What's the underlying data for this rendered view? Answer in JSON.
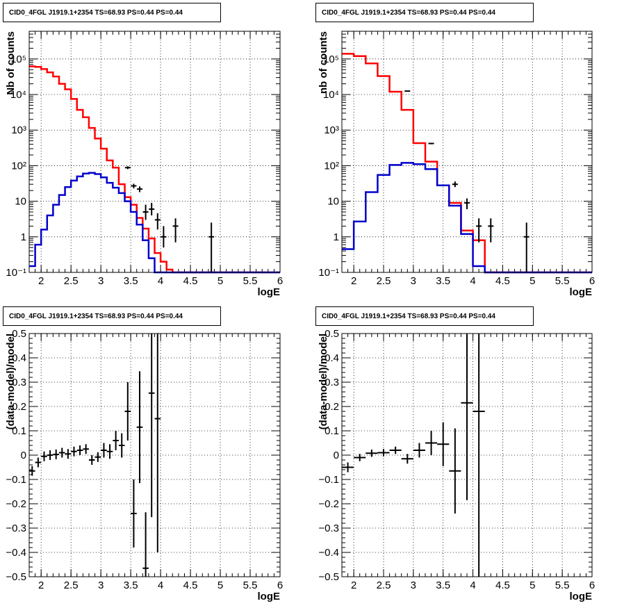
{
  "pads": [
    {
      "title": "CID0_4FGL J1919.1+2354 TS=68.93 PS=0.44 PS=0.44"
    },
    {
      "title": "CID0_4FGL J1919.1+2354 TS=68.93 PS=0.44 PS=0.44"
    },
    {
      "title": "CID0_4FGL J1919.1+2354 TS=68.93 PS=0.44 PS=0.44"
    },
    {
      "title": "CID0_4FGL J1919.1+2354 TS=68.93 PS=0.44 PS=0.44"
    }
  ],
  "colors": {
    "total_model": "#ff0000",
    "source_model": "#0000cc",
    "data": "#000000",
    "grid": "#000000"
  },
  "chart_data": [
    {
      "type": "line",
      "title": "CID0_4FGL J1919.1+2354 TS=68.93 PS=0.44 PS=0.44",
      "xlabel": "logE",
      "ylabel": "Nb of counts",
      "xlim": [
        1.8,
        6.0
      ],
      "ylim": [
        0.1,
        600000
      ],
      "ylog": true,
      "grid": true,
      "xticks": [
        {
          "v": 2,
          "label": "2"
        },
        {
          "v": 2.5,
          "label": "2.5"
        },
        {
          "v": 3,
          "label": "3"
        },
        {
          "v": 3.5,
          "label": "3.5"
        },
        {
          "v": 4,
          "label": "4"
        },
        {
          "v": 4.5,
          "label": "4.5"
        },
        {
          "v": 5,
          "label": "5"
        },
        {
          "v": 5.5,
          "label": "5.5"
        },
        {
          "v": 6,
          "label": "6"
        }
      ],
      "yticks": [
        {
          "v": 0.1,
          "label": "10⁻¹"
        },
        {
          "v": 1,
          "label": "1"
        },
        {
          "v": 10,
          "label": "10"
        },
        {
          "v": 100,
          "label": "10²"
        },
        {
          "v": 1000,
          "label": "10³"
        },
        {
          "v": 10000,
          "label": "10⁴"
        },
        {
          "v": 100000,
          "label": "10⁵"
        }
      ],
      "bin_edges_start": 1.8,
      "bin_width": 0.1,
      "series": [
        {
          "kind": "hist",
          "color": "#ff0000",
          "values": [
            62000,
            60000,
            52000,
            42000,
            32000,
            20000,
            14000,
            7500,
            3700,
            2300,
            1150,
            580,
            300,
            140,
            88,
            30,
            13,
            8,
            3.4,
            1.7,
            0.9,
            0.35,
            0.2,
            0.12,
            0.1,
            0.1,
            0.1,
            0.1,
            0.1,
            0.1,
            0.1,
            0.1,
            0.1,
            0.1,
            0.1,
            0.1,
            0.1,
            0.1,
            0.1,
            0.1,
            0.1,
            0.1
          ]
        },
        {
          "kind": "hist",
          "color": "#0000cc",
          "values": [
            0.15,
            0.6,
            1.6,
            4,
            8,
            15,
            25,
            38,
            50,
            60,
            63,
            58,
            47,
            33,
            24,
            17,
            10,
            5,
            2.2,
            0.8,
            0.25,
            0.1,
            0.1,
            0.1,
            0.1,
            0.1,
            0.1,
            0.1,
            0.1,
            0.1,
            0.1,
            0.1,
            0.1,
            0.1,
            0.1,
            0.1,
            0.1,
            0.1,
            0.1,
            0.1,
            0.1,
            0.1
          ]
        },
        {
          "kind": "points",
          "color": "#000000",
          "points": [
            {
              "x": 3.45,
              "y": 88,
              "lo": 80,
              "hi": 96
            },
            {
              "x": 3.55,
              "y": 27,
              "lo": 23,
              "hi": 31
            },
            {
              "x": 3.65,
              "y": 22,
              "lo": 18,
              "hi": 26
            },
            {
              "x": 3.75,
              "y": 5,
              "lo": 3,
              "hi": 8
            },
            {
              "x": 3.85,
              "y": 6,
              "lo": 4,
              "hi": 9
            },
            {
              "x": 3.95,
              "y": 3,
              "lo": 1.6,
              "hi": 4.6
            },
            {
              "x": 4.05,
              "y": 1,
              "lo": 0.5,
              "hi": 2
            },
            {
              "x": 4.25,
              "y": 2,
              "lo": 0.7,
              "hi": 3.3
            },
            {
              "x": 4.85,
              "y": 1,
              "lo": 0.1,
              "hi": 2.5
            }
          ]
        }
      ]
    },
    {
      "type": "line",
      "title": "CID0_4FGL J1919.1+2354 TS=68.93 PS=0.44 PS=0.44",
      "xlabel": "logE",
      "ylabel": "nb of counts",
      "xlim": [
        1.8,
        6.0
      ],
      "ylim": [
        0.1,
        600000
      ],
      "ylog": true,
      "grid": true,
      "xticks": [
        {
          "v": 2,
          "label": "2"
        },
        {
          "v": 2.5,
          "label": "2.5"
        },
        {
          "v": 3,
          "label": "3"
        },
        {
          "v": 3.5,
          "label": "3.5"
        },
        {
          "v": 4,
          "label": "4"
        },
        {
          "v": 4.5,
          "label": "4.5"
        },
        {
          "v": 5,
          "label": "5"
        },
        {
          "v": 5.5,
          "label": "5.5"
        },
        {
          "v": 6,
          "label": "6"
        }
      ],
      "yticks": [
        {
          "v": 0.1,
          "label": "10⁻¹"
        },
        {
          "v": 1,
          "label": "1"
        },
        {
          "v": 10,
          "label": "10"
        },
        {
          "v": 100,
          "label": "10²"
        },
        {
          "v": 1000,
          "label": "10³"
        },
        {
          "v": 10000,
          "label": "10⁴"
        },
        {
          "v": 100000,
          "label": "10⁵"
        }
      ],
      "bin_edges_start": 1.8,
      "bin_width": 0.2,
      "series": [
        {
          "kind": "hist",
          "color": "#ff0000",
          "values": [
            140000,
            120000,
            75000,
            33000,
            12000,
            3700,
            430,
            130,
            28,
            9,
            1.5,
            0.8,
            0.1,
            0.1,
            0.1,
            0.1,
            0.1,
            0.1,
            0.1,
            0.1,
            0.1
          ]
        },
        {
          "kind": "hist",
          "color": "#0000cc",
          "values": [
            0.45,
            2.7,
            18,
            55,
            105,
            120,
            110,
            80,
            28,
            7.5,
            1.2,
            0.15,
            0.1,
            0.1,
            0.1,
            0.1,
            0.1,
            0.1,
            0.1,
            0.1,
            0.1
          ]
        },
        {
          "kind": "points",
          "color": "#000000",
          "points": [
            {
              "x": 2.9,
              "y": 12500,
              "lo": 12300,
              "hi": 12700
            },
            {
              "x": 3.3,
              "y": 420,
              "lo": 400,
              "hi": 440
            },
            {
              "x": 3.7,
              "y": 30,
              "lo": 25,
              "hi": 36
            },
            {
              "x": 3.9,
              "y": 9,
              "lo": 6,
              "hi": 12
            },
            {
              "x": 4.1,
              "y": 2,
              "lo": 0.7,
              "hi": 3.3
            },
            {
              "x": 4.3,
              "y": 2,
              "lo": 0.7,
              "hi": 3.3
            },
            {
              "x": 4.9,
              "y": 1,
              "lo": 0.1,
              "hi": 2.5
            }
          ]
        }
      ]
    },
    {
      "type": "scatter",
      "title": "CID0_4FGL J1919.1+2354 TS=68.93 PS=0.44 PS=0.44",
      "xlabel": "logE",
      "ylabel": "(data-model)/model",
      "xlim": [
        1.8,
        6.0
      ],
      "ylim": [
        -0.5,
        0.5
      ],
      "grid": true,
      "xticks": [
        {
          "v": 2,
          "label": "2"
        },
        {
          "v": 2.5,
          "label": "2.5"
        },
        {
          "v": 3,
          "label": "3"
        },
        {
          "v": 3.5,
          "label": "3.5"
        },
        {
          "v": 4,
          "label": "4"
        },
        {
          "v": 4.5,
          "label": "4.5"
        },
        {
          "v": 5,
          "label": "5"
        },
        {
          "v": 5.5,
          "label": "5.5"
        },
        {
          "v": 6,
          "label": "6"
        }
      ],
      "yticks": [
        {
          "v": -0.5,
          "label": "−0.5"
        },
        {
          "v": -0.4,
          "label": "−0.4"
        },
        {
          "v": -0.3,
          "label": "−0.3"
        },
        {
          "v": -0.2,
          "label": "−0.2"
        },
        {
          "v": -0.1,
          "label": "−0.1"
        },
        {
          "v": 0,
          "label": "0"
        },
        {
          "v": 0.1,
          "label": "0.1"
        },
        {
          "v": 0.2,
          "label": "0.2"
        },
        {
          "v": 0.3,
          "label": "0.3"
        },
        {
          "v": 0.4,
          "label": "0.4"
        },
        {
          "v": 0.5,
          "label": "0.5"
        }
      ],
      "half_width": 0.05,
      "points": [
        {
          "x": 1.85,
          "y": -0.065,
          "err": 0.02
        },
        {
          "x": 1.95,
          "y": -0.03,
          "err": 0.02
        },
        {
          "x": 2.05,
          "y": -0.005,
          "err": 0.02
        },
        {
          "x": 2.15,
          "y": 0.0,
          "err": 0.02
        },
        {
          "x": 2.25,
          "y": 0.003,
          "err": 0.02
        },
        {
          "x": 2.35,
          "y": 0.01,
          "err": 0.02
        },
        {
          "x": 2.45,
          "y": 0.005,
          "err": 0.02
        },
        {
          "x": 2.55,
          "y": 0.015,
          "err": 0.02
        },
        {
          "x": 2.65,
          "y": 0.02,
          "err": 0.02
        },
        {
          "x": 2.75,
          "y": 0.025,
          "err": 0.02
        },
        {
          "x": 2.85,
          "y": -0.02,
          "err": 0.02
        },
        {
          "x": 2.95,
          "y": -0.008,
          "err": 0.02
        },
        {
          "x": 3.05,
          "y": 0.02,
          "err": 0.03
        },
        {
          "x": 3.15,
          "y": 0.015,
          "err": 0.03
        },
        {
          "x": 3.25,
          "y": 0.06,
          "err": 0.04
        },
        {
          "x": 3.35,
          "y": 0.04,
          "err": 0.05
        },
        {
          "x": 3.45,
          "y": 0.18,
          "err": 0.12
        },
        {
          "x": 3.55,
          "y": -0.24,
          "err": 0.14
        },
        {
          "x": 3.65,
          "y": 0.115,
          "err": 0.23
        },
        {
          "x": 3.75,
          "y": -0.465,
          "err": 0.23
        },
        {
          "x": 3.85,
          "y": 0.255,
          "err": 0.51
        },
        {
          "x": 3.95,
          "y": 0.15,
          "err": 0.55
        }
      ]
    },
    {
      "type": "scatter",
      "title": "CID0_4FGL J1919.1+2354 TS=68.93 PS=0.44 PS=0.44",
      "xlabel": "logE",
      "ylabel": "(data-model)/model",
      "xlim": [
        1.8,
        6.0
      ],
      "ylim": [
        -0.5,
        0.5
      ],
      "grid": true,
      "xticks": [
        {
          "v": 2,
          "label": "2"
        },
        {
          "v": 2.5,
          "label": "2.5"
        },
        {
          "v": 3,
          "label": "3"
        },
        {
          "v": 3.5,
          "label": "3.5"
        },
        {
          "v": 4,
          "label": "4"
        },
        {
          "v": 4.5,
          "label": "4.5"
        },
        {
          "v": 5,
          "label": "5"
        },
        {
          "v": 5.5,
          "label": "5.5"
        },
        {
          "v": 6,
          "label": "6"
        }
      ],
      "yticks": [
        {
          "v": -0.5,
          "label": "−0.5"
        },
        {
          "v": -0.4,
          "label": "−0.4"
        },
        {
          "v": -0.3,
          "label": "−0.3"
        },
        {
          "v": -0.2,
          "label": "−0.2"
        },
        {
          "v": -0.1,
          "label": "−0.1"
        },
        {
          "v": 0,
          "label": "0"
        },
        {
          "v": 0.1,
          "label": "0.1"
        },
        {
          "v": 0.2,
          "label": "0.2"
        },
        {
          "v": 0.3,
          "label": "0.3"
        },
        {
          "v": 0.4,
          "label": "0.4"
        },
        {
          "v": 0.5,
          "label": "0.5"
        }
      ],
      "half_width": 0.1,
      "points": [
        {
          "x": 1.9,
          "y": -0.05,
          "err": 0.02
        },
        {
          "x": 2.1,
          "y": -0.01,
          "err": 0.015
        },
        {
          "x": 2.3,
          "y": 0.008,
          "err": 0.015
        },
        {
          "x": 2.5,
          "y": 0.01,
          "err": 0.015
        },
        {
          "x": 2.7,
          "y": 0.02,
          "err": 0.015
        },
        {
          "x": 2.9,
          "y": -0.015,
          "err": 0.02
        },
        {
          "x": 3.1,
          "y": 0.02,
          "err": 0.03
        },
        {
          "x": 3.3,
          "y": 0.05,
          "err": 0.05
        },
        {
          "x": 3.5,
          "y": 0.045,
          "err": 0.09
        },
        {
          "x": 3.7,
          "y": -0.065,
          "err": 0.175
        },
        {
          "x": 3.9,
          "y": 0.215,
          "err": 0.4
        },
        {
          "x": 4.1,
          "y": 0.18,
          "err": 0.7
        }
      ]
    }
  ]
}
